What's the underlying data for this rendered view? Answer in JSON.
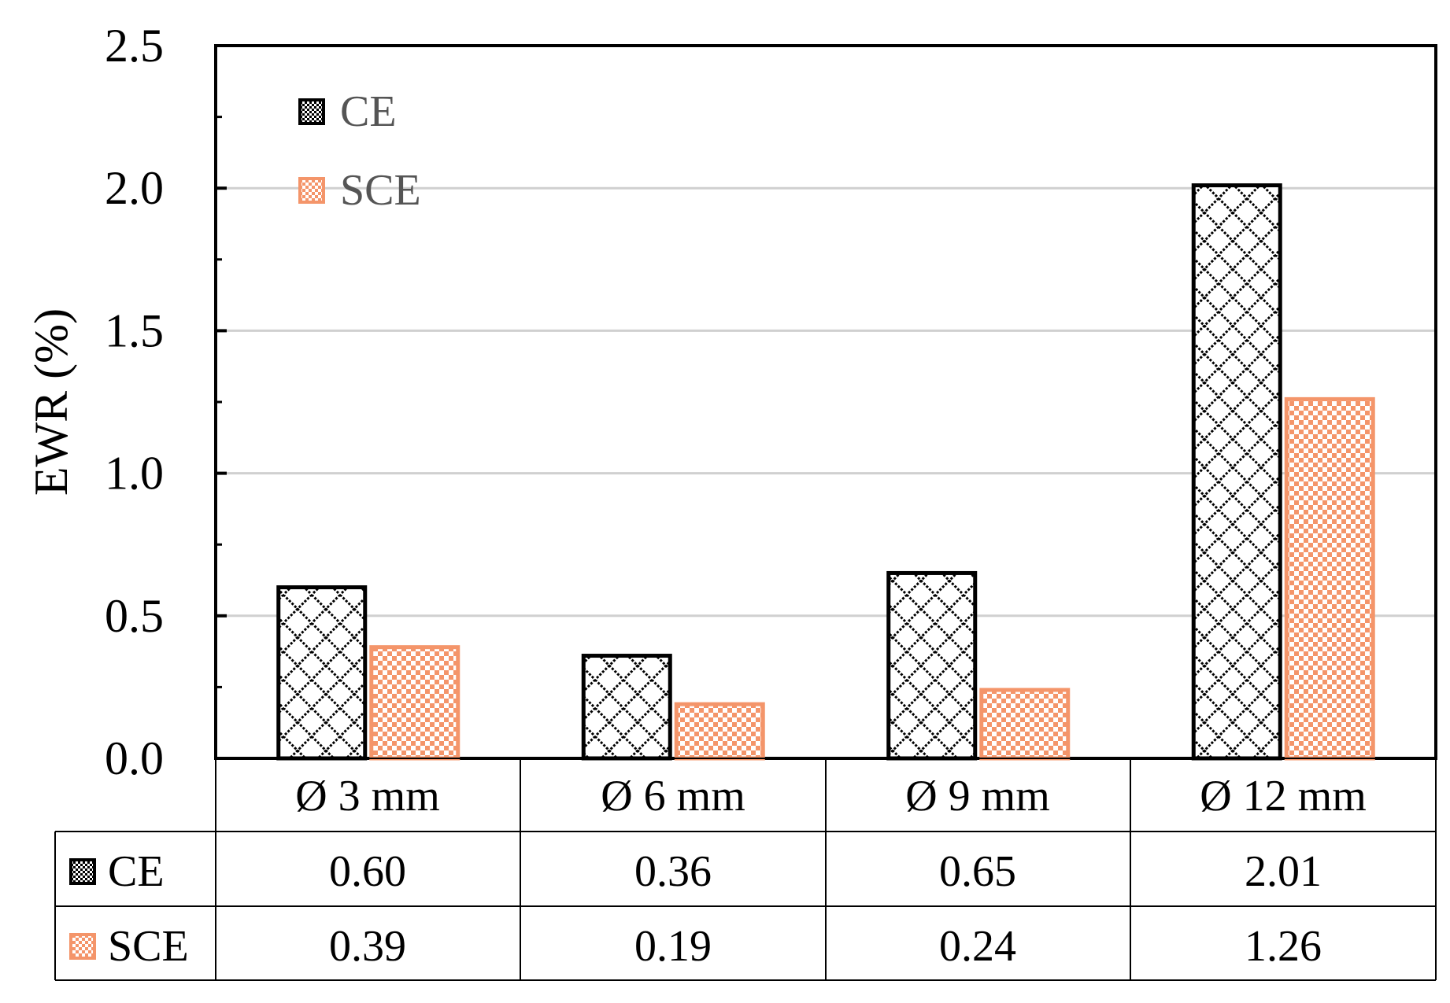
{
  "colors": {
    "ce": "#000000",
    "sce": "#f4956a",
    "grid": "#d0d0d0"
  },
  "chart_data": {
    "type": "bar",
    "title": "",
    "xlabel": "",
    "ylabel": "EWR (%)",
    "ylim": [
      0,
      2.5
    ],
    "yticks": [
      "0.0",
      "0.5",
      "1.0",
      "1.5",
      "2.0",
      "2.5"
    ],
    "categories": [
      "Ø 3 mm",
      "Ø 6 mm",
      "Ø 9 mm",
      "Ø 12 mm"
    ],
    "series": [
      {
        "name": "CE",
        "values": [
          0.6,
          0.36,
          0.65,
          2.01
        ],
        "labels": [
          "0.60",
          "0.36",
          "0.65",
          "2.01"
        ]
      },
      {
        "name": "SCE",
        "values": [
          0.39,
          0.19,
          0.24,
          1.26
        ],
        "labels": [
          "0.39",
          "0.19",
          "0.24",
          "1.26"
        ]
      }
    ],
    "legend": {
      "placement": "top-left",
      "entries": [
        "CE",
        "SCE"
      ]
    },
    "grid": true,
    "data_table": true
  }
}
